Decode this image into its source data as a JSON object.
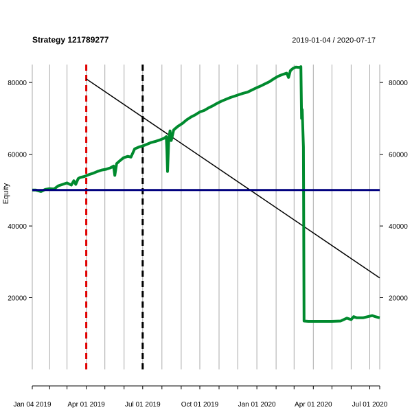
{
  "chart_data": {
    "type": "line",
    "title": "Strategy 121789277",
    "date_range": "2019-01-04 / 2020-07-17",
    "ylabel": "Equity",
    "xlabel": "",
    "x_range": [
      "2019-01-04",
      "2020-07-17"
    ],
    "ylim": [
      0,
      85000
    ],
    "y_ticks": [
      20000,
      40000,
      60000,
      80000
    ],
    "x_ticks": [
      {
        "date": "2019-01-04",
        "label": "Jan 04 2019"
      },
      {
        "date": "2019-04-01",
        "label": "Apr 01 2019"
      },
      {
        "date": "2019-07-01",
        "label": "Jul 01 2019"
      },
      {
        "date": "2019-10-01",
        "label": "Oct 01 2019"
      },
      {
        "date": "2020-01-01",
        "label": "Jan 01 2020"
      },
      {
        "date": "2020-04-01",
        "label": "Apr 01 2020"
      },
      {
        "date": "2020-07-01",
        "label": "Jul 01 2020"
      }
    ],
    "grid": true,
    "series": [
      {
        "role": "equity",
        "color": "#008a2e",
        "points": [
          [
            "2019-01-04",
            50000
          ],
          [
            "2019-01-10",
            50000
          ],
          [
            "2019-01-18",
            49600
          ],
          [
            "2019-01-25",
            50200
          ],
          [
            "2019-02-01",
            50400
          ],
          [
            "2019-02-08",
            50300
          ],
          [
            "2019-02-15",
            51200
          ],
          [
            "2019-02-22",
            51600
          ],
          [
            "2019-03-01",
            52000
          ],
          [
            "2019-03-08",
            51400
          ],
          [
            "2019-03-12",
            52600
          ],
          [
            "2019-03-15",
            51600
          ],
          [
            "2019-03-19",
            53200
          ],
          [
            "2019-03-22",
            53500
          ],
          [
            "2019-03-29",
            53800
          ],
          [
            "2019-04-05",
            54300
          ],
          [
            "2019-04-12",
            54700
          ],
          [
            "2019-04-19",
            55200
          ],
          [
            "2019-04-26",
            55600
          ],
          [
            "2019-05-03",
            55800
          ],
          [
            "2019-05-10",
            56200
          ],
          [
            "2019-05-15",
            56700
          ],
          [
            "2019-05-17",
            54100
          ],
          [
            "2019-05-20",
            57400
          ],
          [
            "2019-05-24",
            58000
          ],
          [
            "2019-05-31",
            59000
          ],
          [
            "2019-06-07",
            59400
          ],
          [
            "2019-06-12",
            59200
          ],
          [
            "2019-06-18",
            61500
          ],
          [
            "2019-06-25",
            62000
          ],
          [
            "2019-07-01",
            62300
          ],
          [
            "2019-07-08",
            62800
          ],
          [
            "2019-07-15",
            63300
          ],
          [
            "2019-07-22",
            63600
          ],
          [
            "2019-07-29",
            64000
          ],
          [
            "2019-08-05",
            64500
          ],
          [
            "2019-08-08",
            64900
          ],
          [
            "2019-08-09",
            61000
          ],
          [
            "2019-08-10",
            55200
          ],
          [
            "2019-08-12",
            64200
          ],
          [
            "2019-08-14",
            66500
          ],
          [
            "2019-08-16",
            63800
          ],
          [
            "2019-08-20",
            66800
          ],
          [
            "2019-08-27",
            67800
          ],
          [
            "2019-09-03",
            68600
          ],
          [
            "2019-09-10",
            69600
          ],
          [
            "2019-09-17",
            70400
          ],
          [
            "2019-09-24",
            71000
          ],
          [
            "2019-10-01",
            71800
          ],
          [
            "2019-10-08",
            72200
          ],
          [
            "2019-10-15",
            72900
          ],
          [
            "2019-10-22",
            73500
          ],
          [
            "2019-10-29",
            74200
          ],
          [
            "2019-11-05",
            74800
          ],
          [
            "2019-11-12",
            75300
          ],
          [
            "2019-11-19",
            75800
          ],
          [
            "2019-11-26",
            76200
          ],
          [
            "2019-12-03",
            76600
          ],
          [
            "2019-12-10",
            77000
          ],
          [
            "2019-12-17",
            77300
          ],
          [
            "2019-12-24",
            77900
          ],
          [
            "2019-12-31",
            78500
          ],
          [
            "2020-01-07",
            79000
          ],
          [
            "2020-01-14",
            79600
          ],
          [
            "2020-01-21",
            80200
          ],
          [
            "2020-01-28",
            81000
          ],
          [
            "2020-02-04",
            81700
          ],
          [
            "2020-02-11",
            82200
          ],
          [
            "2020-02-18",
            82600
          ],
          [
            "2020-02-21",
            81400
          ],
          [
            "2020-02-24",
            83300
          ],
          [
            "2020-02-28",
            83900
          ],
          [
            "2020-03-04",
            84300
          ],
          [
            "2020-03-10",
            84200
          ],
          [
            "2020-03-12",
            84400
          ],
          [
            "2020-03-13",
            70000
          ],
          [
            "2020-03-14",
            72400
          ],
          [
            "2020-03-16",
            62000
          ],
          [
            "2020-03-17",
            13500
          ],
          [
            "2020-03-24",
            13400
          ],
          [
            "2020-04-01",
            13400
          ],
          [
            "2020-04-15",
            13400
          ],
          [
            "2020-05-01",
            13400
          ],
          [
            "2020-05-15",
            13500
          ],
          [
            "2020-05-25",
            14300
          ],
          [
            "2020-06-01",
            13900
          ],
          [
            "2020-06-05",
            14700
          ],
          [
            "2020-06-10",
            14400
          ],
          [
            "2020-06-20",
            14400
          ],
          [
            "2020-06-30",
            14800
          ],
          [
            "2020-07-05",
            15000
          ],
          [
            "2020-07-10",
            14700
          ],
          [
            "2020-07-17",
            14400
          ]
        ]
      },
      {
        "role": "baseline",
        "color": "#00007f",
        "points": [
          [
            "2019-01-04",
            50000
          ],
          [
            "2020-07-17",
            50000
          ]
        ]
      },
      {
        "role": "trend",
        "color": "#000000",
        "points": [
          [
            "2019-04-01",
            81000
          ],
          [
            "2020-07-17",
            25500
          ]
        ]
      }
    ],
    "vertical_markers": [
      {
        "date": "2019-04-01",
        "color": "#e00000"
      },
      {
        "date": "2019-07-01",
        "color": "#000000"
      }
    ]
  }
}
